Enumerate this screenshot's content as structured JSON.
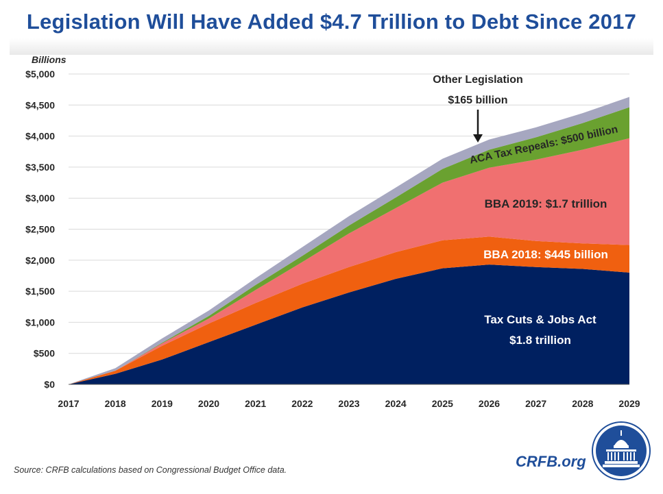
{
  "title": "Legislation Will Have Added $4.7 Trillion to Debt Since 2017",
  "source": "Source: CRFB calculations based on Congressional Budget Office data.",
  "brand": "CRFB.org",
  "chart_data": {
    "type": "area",
    "stacked": true,
    "title": "Legislation Will Have Added $4.7 Trillion to Debt Since 2017",
    "ylabel": "Billions",
    "xlabel": "",
    "ylim": [
      0,
      5000
    ],
    "yticks": [
      0,
      500,
      1000,
      1500,
      2000,
      2500,
      3000,
      3500,
      4000,
      4500,
      5000
    ],
    "ytick_labels": [
      "$0",
      "$500",
      "$1,000",
      "$1,500",
      "$2,000",
      "$2,500",
      "$3,000",
      "$3,500",
      "$4,000",
      "$4,500",
      "$5,000"
    ],
    "grid": true,
    "categories": [
      "2017",
      "2018",
      "2019",
      "2020",
      "2021",
      "2022",
      "2023",
      "2024",
      "2025",
      "2026",
      "2027",
      "2028",
      "2029"
    ],
    "series": [
      {
        "name": "Tax Cuts & Jobs Act",
        "color": "#002060",
        "values": [
          0,
          170,
          400,
          680,
          960,
          1240,
          1480,
          1700,
          1870,
          1930,
          1890,
          1860,
          1800
        ],
        "label_lines": [
          "Tax Cuts & Jobs Act",
          "$1.8 trillion"
        ],
        "label_color": "#ffffff"
      },
      {
        "name": "BBA 2018",
        "color": "#f06010",
        "values": [
          0,
          50,
          220,
          300,
          350,
          380,
          410,
          430,
          450,
          450,
          420,
          410,
          445
        ],
        "label_lines": [
          "BBA 2018: $445 billion"
        ],
        "label_color": "#ffffff"
      },
      {
        "name": "BBA 2019",
        "color": "#f07070",
        "values": [
          0,
          0,
          40,
          80,
          210,
          350,
          540,
          710,
          930,
          1110,
          1310,
          1510,
          1720
        ],
        "label_lines": [
          "BBA 2019: $1.7 trillion"
        ],
        "label_color": "#262626"
      },
      {
        "name": "ACA Tax Repeals",
        "color": "#6aa130",
        "values": [
          0,
          0,
          10,
          40,
          80,
          100,
          130,
          170,
          220,
          290,
          360,
          430,
          500
        ],
        "label_lines": [
          "ACA Tax Repeals: $500 billion"
        ],
        "label_color": "#262626"
      },
      {
        "name": "Other Legislation",
        "color": "#a6a7c0",
        "values": [
          0,
          40,
          70,
          90,
          110,
          140,
          150,
          160,
          165,
          165,
          160,
          160,
          165
        ],
        "label_lines": [
          "Other Legislation",
          "$165 billion"
        ],
        "label_color": "#262626"
      }
    ]
  }
}
